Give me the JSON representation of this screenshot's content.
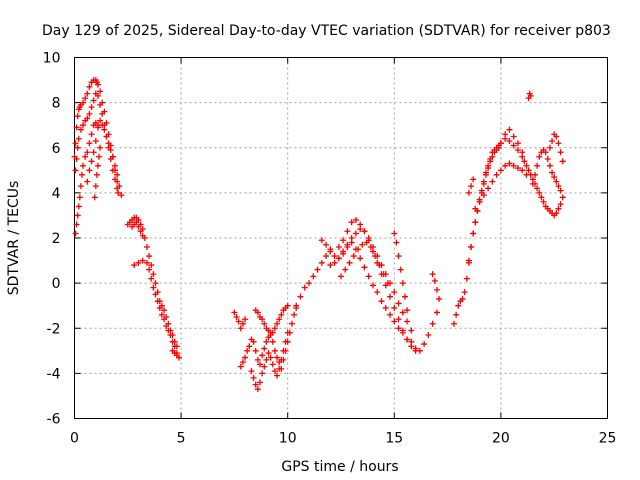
{
  "chart_data": {
    "type": "scatter",
    "title": "Day 129 of 2025, Sidereal Day-to-day VTEC variation (SDTVAR) for receiver p803",
    "xlabel": "GPS time / hours",
    "ylabel": "SDTVAR / TECUs",
    "xlim": [
      0,
      25
    ],
    "ylim": [
      -6,
      10
    ],
    "x_ticks": [
      0,
      5,
      10,
      15,
      20,
      25
    ],
    "y_ticks": [
      -6,
      -4,
      -2,
      0,
      2,
      4,
      6,
      8,
      10
    ],
    "x_tick_labels": [
      "0",
      "5",
      "10",
      "15",
      "20",
      "25"
    ],
    "y_tick_labels": [
      "-6",
      "-4",
      "-2",
      "0",
      "2",
      "4",
      "6",
      "8",
      "10"
    ],
    "grid": true,
    "marker": "plus",
    "color": "#ff0000",
    "series": [
      {
        "name": "SDTVAR",
        "x": [
          0.0,
          0.05,
          0.1,
          0.15,
          0.2,
          0.25,
          0.3,
          0.4,
          0.5,
          0.6,
          0.7,
          0.8,
          0.9,
          1.0,
          1.05,
          1.1,
          1.2,
          1.3,
          1.4,
          1.5,
          1.6,
          1.7,
          1.8,
          1.9,
          2.0,
          2.05,
          0.05,
          0.1,
          0.15,
          0.2,
          0.3,
          0.4,
          0.5,
          0.6,
          0.7,
          0.8,
          0.9,
          1.0,
          1.1,
          1.2,
          1.3,
          1.4,
          1.5,
          1.6,
          1.7,
          1.8,
          1.9,
          2.0,
          0.05,
          0.1,
          0.15,
          0.2,
          0.25,
          0.3,
          0.35,
          0.4,
          0.5,
          0.6,
          0.7,
          0.8,
          0.9,
          1.0,
          1.1,
          0.6,
          0.7,
          0.8,
          0.9,
          1.0,
          1.1,
          1.2,
          1.3,
          1.4,
          1.5,
          1.6,
          1.7,
          1.8,
          1.9,
          2.0,
          2.1,
          2.2,
          0.95,
          1.0,
          1.05,
          1.1,
          1.15,
          1.2,
          2.5,
          2.6,
          2.7,
          2.8,
          2.9,
          3.0,
          3.1,
          3.2,
          3.3,
          3.4,
          3.5,
          3.6,
          3.7,
          3.8,
          3.9,
          4.0,
          4.1,
          4.2,
          4.3,
          4.4,
          4.5,
          4.6,
          4.7,
          4.8,
          2.8,
          3.0,
          3.2,
          3.4,
          3.5,
          3.6,
          3.7,
          3.8,
          3.9,
          4.0,
          4.1,
          4.2,
          4.3,
          4.4,
          4.5,
          4.6,
          4.7,
          4.8,
          2.7,
          2.8,
          2.9,
          3.0,
          3.1,
          3.2,
          4.6,
          4.7,
          4.8,
          4.9,
          7.5,
          7.6,
          7.7,
          7.8,
          7.9,
          8.0,
          7.8,
          7.9,
          8.0,
          8.1,
          8.2,
          8.3,
          8.4,
          8.5,
          8.6,
          8.7,
          8.8,
          8.9,
          9.0,
          9.1,
          9.2,
          9.3,
          9.4,
          9.5,
          9.6,
          9.7,
          9.8,
          9.9,
          10.0,
          10.1,
          10.2,
          10.3,
          10.4,
          8.3,
          8.4,
          8.5,
          8.6,
          8.7,
          8.8,
          8.9,
          9.0,
          9.1,
          9.2,
          9.3,
          9.4,
          9.5,
          9.6,
          9.7,
          9.8,
          9.9,
          10.0,
          8.5,
          8.6,
          8.7,
          8.8,
          8.9,
          9.0,
          9.1,
          9.2,
          9.3,
          9.4,
          9.5,
          9.6,
          9.7,
          9.8,
          9.9,
          10.0,
          10.4,
          10.6,
          10.8,
          11.0,
          11.2,
          11.4,
          11.6,
          11.8,
          12.0,
          11.6,
          11.8,
          12.0,
          12.2,
          12.4,
          12.6,
          12.8,
          13.0,
          13.2,
          13.4,
          13.6,
          13.8,
          14.0,
          14.2,
          14.4,
          14.6,
          14.8,
          15.0,
          15.2,
          15.4,
          15.6,
          12.0,
          12.2,
          12.4,
          12.6,
          12.8,
          13.0,
          13.2,
          13.4,
          13.6,
          13.8,
          14.0,
          14.2,
          14.4,
          14.6,
          14.8,
          15.0,
          15.2,
          15.4,
          15.6,
          15.8,
          12.4,
          12.6,
          12.8,
          13.0,
          13.2,
          13.4,
          13.6,
          13.8,
          14.0,
          14.2,
          14.4,
          14.6,
          14.8,
          15.0,
          15.2,
          15.4,
          15.6,
          15.8,
          16.0,
          12.5,
          12.7,
          12.9,
          13.1,
          13.3,
          13.5,
          13.7,
          13.9,
          14.1,
          14.3,
          14.5,
          14.7,
          15.0,
          15.1,
          15.2,
          15.3,
          15.4,
          15.5,
          15.6,
          15.8,
          16.0,
          16.2,
          16.4,
          16.6,
          16.8,
          17.0,
          16.8,
          16.9,
          17.0,
          17.1,
          17.8,
          17.9,
          18.0,
          18.1,
          18.2,
          18.3,
          18.4,
          18.5,
          18.6,
          18.7,
          18.8,
          18.9,
          19.0,
          19.1,
          19.2,
          19.3,
          19.4,
          19.5,
          19.6,
          19.7,
          19.8,
          19.9,
          20.0,
          20.2,
          20.4,
          20.6,
          20.8,
          21.0,
          18.5,
          18.6,
          18.7,
          18.8,
          18.9,
          19.0,
          19.1,
          19.2,
          19.3,
          19.4,
          19.5,
          19.6,
          19.7,
          19.8,
          19.9,
          20.0,
          20.2,
          20.4,
          20.6,
          20.8,
          18.8,
          19.0,
          19.2,
          19.4,
          19.6,
          19.8,
          20.0,
          20.2,
          20.4,
          20.6,
          20.8,
          21.0,
          21.2,
          18.5,
          18.6,
          18.7,
          21.0,
          21.1,
          21.2,
          21.3,
          21.4,
          21.5,
          21.6,
          21.7,
          21.8,
          21.9,
          22.0,
          22.1,
          22.2,
          22.3,
          22.4,
          22.5,
          22.6,
          22.7,
          22.8,
          22.9,
          21.5,
          21.6,
          21.7,
          21.8,
          21.9,
          22.0,
          22.1,
          22.2,
          22.3,
          22.4,
          22.5,
          22.6,
          22.7,
          22.8,
          22.3,
          22.4,
          22.5,
          22.6,
          22.7,
          22.8,
          22.9,
          21.3,
          21.35,
          21.4
        ],
        "y": [
          5.6,
          6.2,
          6.9,
          7.4,
          7.7,
          7.8,
          7.9,
          8.0,
          8.2,
          8.4,
          8.7,
          8.9,
          9.0,
          9.0,
          8.9,
          8.8,
          8.5,
          8.0,
          7.6,
          7.1,
          6.6,
          6.1,
          5.6,
          5.0,
          4.5,
          4.0,
          5.0,
          5.5,
          6.0,
          6.4,
          6.8,
          7.0,
          7.2,
          7.3,
          7.5,
          7.8,
          8.1,
          8.4,
          8.3,
          7.9,
          7.5,
          7.0,
          6.5,
          6.0,
          5.5,
          5.0,
          4.6,
          4.2,
          2.2,
          2.6,
          3.0,
          3.4,
          3.8,
          4.3,
          4.8,
          5.2,
          5.6,
          5.8,
          6.2,
          6.6,
          7.0,
          7.1,
          7.0,
          4.5,
          5.0,
          5.4,
          5.8,
          6.3,
          6.9,
          7.2,
          7.0,
          6.8,
          6.5,
          6.2,
          5.9,
          5.6,
          5.2,
          4.8,
          4.3,
          3.9,
          3.8,
          4.3,
          4.8,
          5.2,
          5.6,
          6.0,
          2.6,
          2.7,
          2.8,
          2.9,
          2.9,
          2.8,
          2.6,
          2.4,
          2.0,
          1.6,
          1.2,
          0.8,
          0.4,
          0.0,
          -0.4,
          -0.8,
          -1.0,
          -1.2,
          -1.5,
          -1.8,
          -2.1,
          -2.3,
          -2.6,
          -2.8,
          0.8,
          0.9,
          1.0,
          0.9,
          0.6,
          0.2,
          -0.2,
          -0.5,
          -0.8,
          -1.1,
          -1.4,
          -1.6,
          -1.9,
          -2.1,
          -2.3,
          -2.6,
          -2.8,
          -3.1,
          2.5,
          2.6,
          2.7,
          2.5,
          2.3,
          2.1,
          -3.0,
          -3.1,
          -3.2,
          -3.3,
          -1.3,
          -1.5,
          -1.7,
          -2.0,
          -1.8,
          -1.6,
          -3.7,
          -3.5,
          -3.3,
          -3.0,
          -2.8,
          -2.5,
          -2.6,
          -3.0,
          -3.4,
          -3.6,
          -3.2,
          -2.9,
          -2.6,
          -2.4,
          -2.2,
          -2.6,
          -3.0,
          -3.3,
          -3.5,
          -3.8,
          -3.4,
          -3.0,
          -2.6,
          -2.2,
          -1.8,
          -1.4,
          -1.1,
          -3.9,
          -4.2,
          -4.5,
          -4.7,
          -4.4,
          -4.0,
          -3.7,
          -3.4,
          -3.1,
          -3.3,
          -3.6,
          -3.9,
          -4.1,
          -3.8,
          -3.4,
          -3.0,
          -2.6,
          -2.2,
          -1.2,
          -1.3,
          -1.5,
          -1.6,
          -1.8,
          -2.0,
          -2.1,
          -2.3,
          -2.2,
          -2.0,
          -1.8,
          -1.6,
          -1.4,
          -1.2,
          -1.1,
          -1.0,
          -1.0,
          -0.6,
          -0.2,
          0.0,
          0.3,
          0.6,
          0.9,
          1.2,
          1.5,
          1.9,
          1.7,
          1.4,
          1.2,
          1.1,
          1.3,
          1.6,
          1.8,
          1.5,
          1.1,
          0.7,
          0.3,
          -0.1,
          -0.4,
          -0.8,
          -1.1,
          -1.4,
          -1.7,
          -2.0,
          -2.2,
          -2.5,
          0.8,
          0.9,
          1.1,
          1.4,
          1.7,
          2.0,
          2.2,
          2.4,
          2.3,
          2.0,
          1.6,
          1.2,
          0.8,
          0.4,
          0.0,
          -0.4,
          -0.9,
          -1.3,
          -1.7,
          -2.1,
          1.6,
          1.9,
          2.3,
          2.7,
          2.8,
          2.6,
          2.3,
          1.9,
          1.4,
          0.9,
          0.4,
          -0.1,
          -0.6,
          -1.1,
          -1.6,
          -2.1,
          -2.5,
          -2.8,
          -3.0,
          0.3,
          0.6,
          0.9,
          1.2,
          1.5,
          1.7,
          1.8,
          1.6,
          1.2,
          0.8,
          0.4,
          0.0,
          2.2,
          1.8,
          1.2,
          0.6,
          0.0,
          -0.6,
          -1.2,
          -2.6,
          -2.9,
          -3.0,
          -2.7,
          -2.3,
          -1.8,
          -1.3,
          0.4,
          0.1,
          -0.3,
          -0.7,
          -1.8,
          -1.4,
          -1.0,
          -0.8,
          -0.7,
          -0.4,
          0.2,
          0.9,
          1.6,
          2.2,
          2.7,
          3.2,
          3.7,
          4.1,
          4.5,
          4.9,
          5.2,
          5.5,
          5.8,
          5.9,
          6.0,
          6.1,
          6.2,
          6.4,
          6.3,
          6.1,
          5.9,
          5.8,
          1.0,
          1.6,
          2.2,
          2.7,
          3.2,
          3.6,
          4.0,
          4.4,
          4.8,
          5.1,
          5.4,
          5.6,
          5.8,
          5.9,
          6.0,
          6.2,
          6.6,
          6.8,
          6.5,
          6.2,
          3.3,
          3.6,
          3.9,
          4.2,
          4.5,
          4.8,
          5.0,
          5.2,
          5.3,
          5.2,
          5.1,
          5.0,
          4.8,
          4.0,
          4.3,
          4.6,
          5.6,
          5.4,
          5.2,
          5.0,
          4.8,
          4.6,
          4.4,
          4.2,
          4.0,
          3.8,
          3.6,
          3.4,
          3.3,
          3.2,
          3.1,
          3.0,
          3.1,
          3.3,
          3.5,
          3.8,
          4.4,
          4.8,
          5.2,
          5.6,
          5.8,
          5.9,
          5.8,
          5.5,
          5.2,
          4.9,
          4.7,
          4.5,
          4.3,
          4.1,
          6.0,
          6.3,
          6.6,
          6.5,
          6.2,
          5.8,
          5.4,
          8.2,
          8.4,
          8.3
        ]
      }
    ]
  }
}
